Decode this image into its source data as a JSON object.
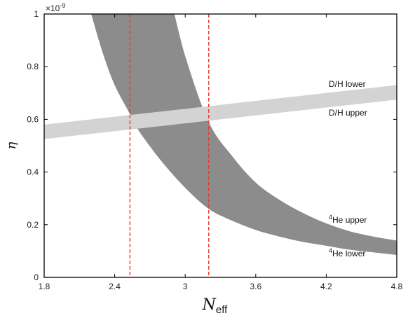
{
  "chart_data": {
    "type": "area",
    "xlabel": "N",
    "xlabel_sub": "eff",
    "ylabel": "η",
    "xlim": [
      1.8,
      4.8
    ],
    "ylim": [
      0,
      1
    ],
    "y_multiplier_label": "×10",
    "y_multiplier_exp": "-9",
    "x_ticks": [
      "1.8",
      "2.4",
      "3",
      "3.6",
      "4.2",
      "4.8"
    ],
    "x_tick_values": [
      1.8,
      2.4,
      3.0,
      3.6,
      4.2,
      4.8
    ],
    "y_ticks": [
      "0",
      "0.2",
      "0.4",
      "0.6",
      "0.8",
      "1"
    ],
    "y_tick_values": [
      0,
      0.2,
      0.4,
      0.6,
      0.8,
      1.0
    ],
    "grid": false,
    "legend": "none",
    "colors": {
      "he_band": "#8c8c8c",
      "dh_band": "#d3d3d3",
      "vline": "#e8392c",
      "axis": "#000000"
    },
    "bands": [
      {
        "id": "he4",
        "upper_label": "He upper",
        "upper_label_sup": "4",
        "lower_label": "He lower",
        "lower_label_sup": "4",
        "x": [
          2.2,
          2.3,
          2.4,
          2.53,
          2.6,
          2.8,
          3.0,
          3.2,
          3.4,
          3.6,
          3.8,
          4.0,
          4.2,
          4.4,
          4.6,
          4.8
        ],
        "upper": [
          1.0,
          1.0,
          1.0,
          1.0,
          1.0,
          1.0,
          0.84,
          0.59,
          0.46,
          0.36,
          0.295,
          0.245,
          0.205,
          0.175,
          0.155,
          0.14
        ],
        "lower": [
          1.0,
          0.85,
          0.73,
          0.62,
          0.56,
          0.44,
          0.34,
          0.26,
          0.215,
          0.18,
          0.155,
          0.135,
          0.12,
          0.105,
          0.095,
          0.085
        ]
      },
      {
        "id": "dh",
        "upper_label": "D/H lower",
        "lower_label": "D/H upper",
        "x": [
          1.8,
          4.8
        ],
        "upper": [
          0.58,
          0.73
        ],
        "lower": [
          0.525,
          0.675
        ]
      }
    ],
    "vlines": [
      2.53,
      3.2
    ]
  }
}
